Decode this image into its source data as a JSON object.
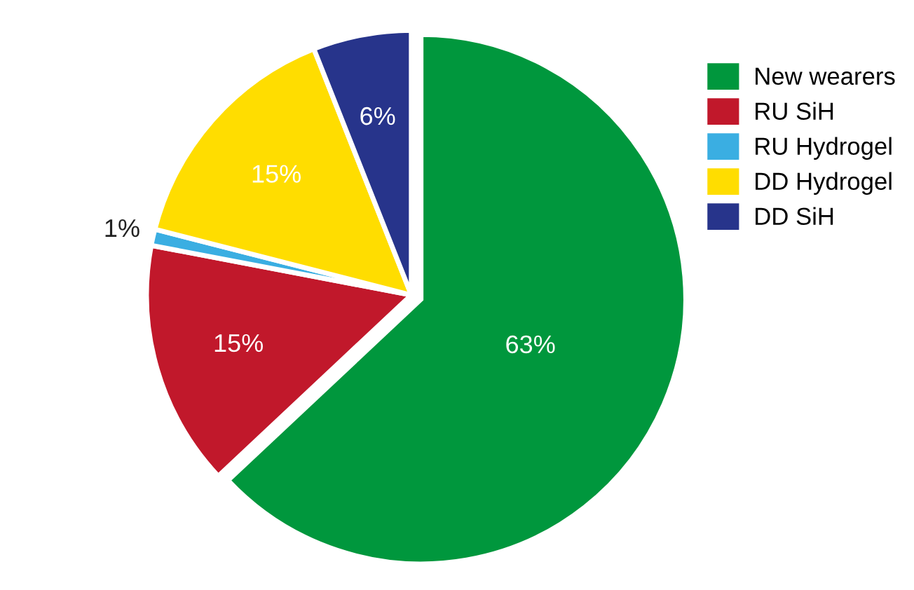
{
  "chart_data": {
    "type": "pie",
    "categories": [
      "New wearers",
      "RU SiH",
      "RU Hydrogel",
      "DD Hydrogel",
      "DD SiH"
    ],
    "values": [
      63,
      15,
      1,
      15,
      6
    ],
    "colors": [
      "#00973d",
      "#c1182b",
      "#3aaee2",
      "#ffdd00",
      "#27348b"
    ],
    "value_labels": [
      "63%",
      "15%",
      "1%",
      "15%",
      "6%"
    ],
    "legend": "right"
  }
}
